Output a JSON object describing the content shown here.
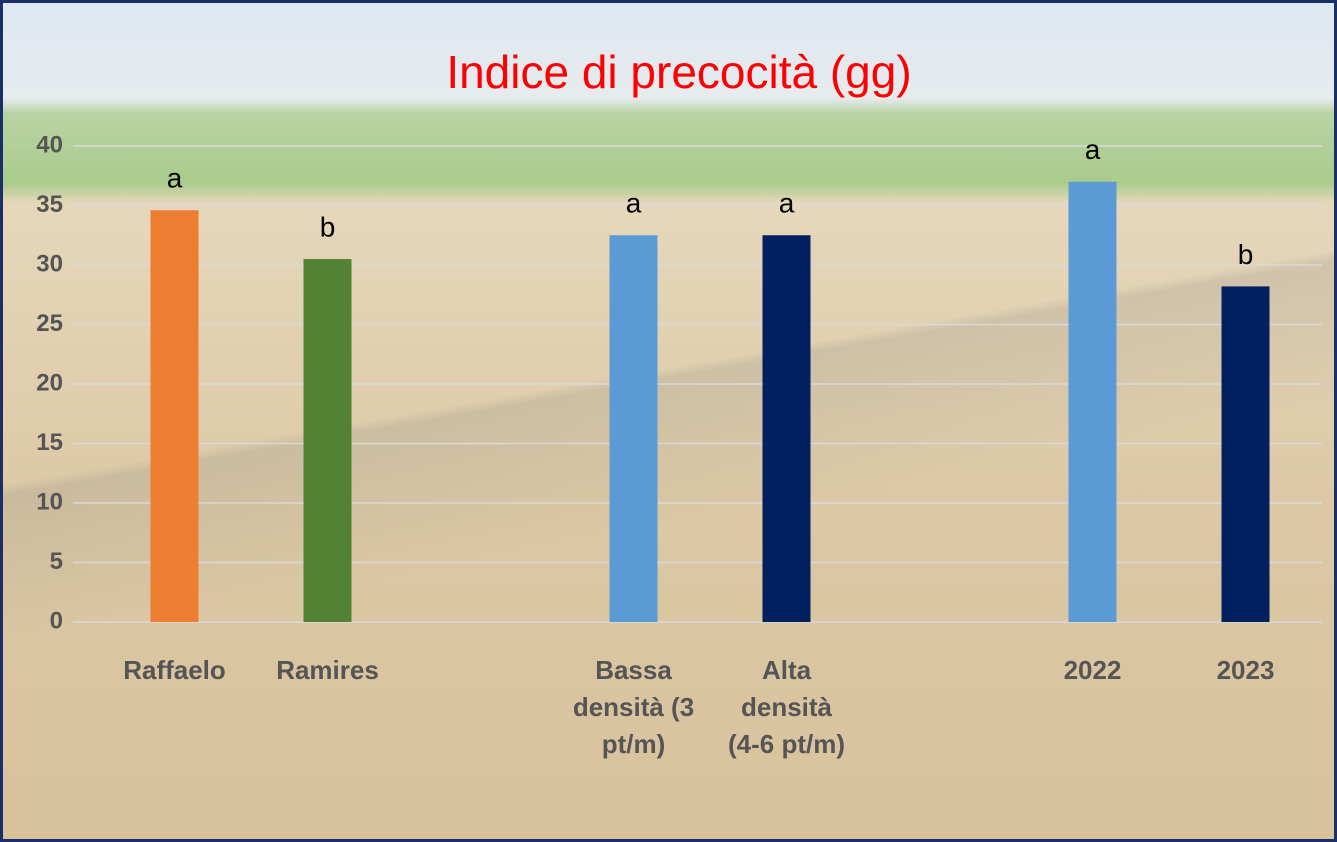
{
  "chart_data": {
    "type": "bar",
    "title": "Indice di precocità (gg)",
    "categories": [
      "Raffaelo",
      "Ramires",
      null,
      "Bassa densità (3 pt/m)",
      "Alta densità (4-6 pt/m)",
      null,
      "2022",
      "2023"
    ],
    "values": [
      34.6,
      30.5,
      null,
      32.5,
      32.5,
      null,
      37.0,
      28.2
    ],
    "annotations": [
      "a",
      "b",
      null,
      "a",
      "a",
      null,
      "a",
      "b"
    ],
    "colors": [
      "#ed7d31",
      "#548235",
      null,
      "#5b9bd5",
      "#002060",
      null,
      "#5b9bd5",
      "#002060"
    ],
    "ylim": [
      0,
      40
    ],
    "yticks": [
      0,
      5,
      10,
      15,
      20,
      25,
      30,
      35,
      40
    ],
    "grid": true
  }
}
